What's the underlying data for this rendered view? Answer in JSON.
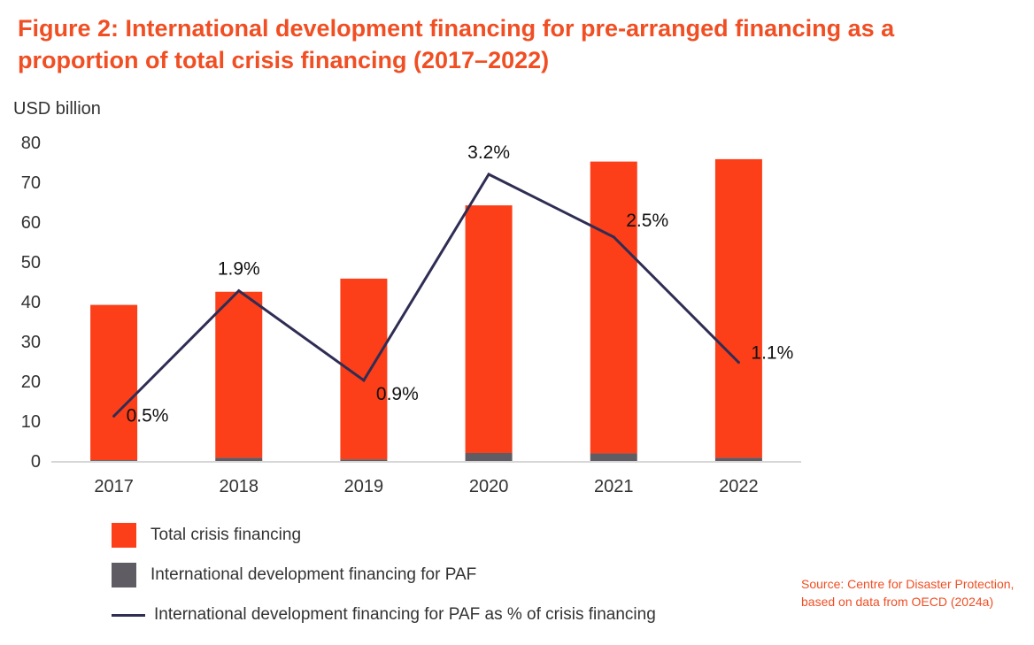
{
  "figure": {
    "title": "Figure 2: International development financing for pre-arranged financing as a proportion of total crisis financing (2017–2022)",
    "source": "Source: Centre for Disaster Protection, based on data from OECD (2024a)"
  },
  "colors": {
    "total": "#fc3e19",
    "paf": "#5f5c63",
    "line": "#2f2d54",
    "title": "#f04e23",
    "axis_text": "#333333"
  },
  "chart_data": {
    "type": "bar",
    "title": "Figure 2: International development financing for pre-arranged financing as a proportion of total crisis financing (2017–2022)",
    "ylabel": "USD billion",
    "xlabel": "",
    "ylim": [
      0,
      80
    ],
    "yticks": [
      0,
      10,
      20,
      30,
      40,
      50,
      60,
      70,
      80
    ],
    "grid": false,
    "legend_position": "bottom-left",
    "categories": [
      "2017",
      "2018",
      "2019",
      "2020",
      "2021",
      "2022"
    ],
    "series": [
      {
        "name": "Total crisis financing",
        "type": "bar",
        "values": [
          39.2,
          42.5,
          45.8,
          64.2,
          75.2,
          75.8
        ]
      },
      {
        "name": "International development financing for PAF",
        "type": "bar",
        "values": [
          0.2,
          0.8,
          0.4,
          2.0,
          1.9,
          0.8
        ]
      },
      {
        "name": "International development financing for PAF as % of crisis financing",
        "type": "line",
        "values": [
          0.5,
          1.9,
          0.9,
          3.2,
          2.5,
          1.1
        ],
        "labels": [
          "0.5%",
          "1.9%",
          "0.9%",
          "3.2%",
          "2.5%",
          "1.1%"
        ]
      }
    ]
  }
}
